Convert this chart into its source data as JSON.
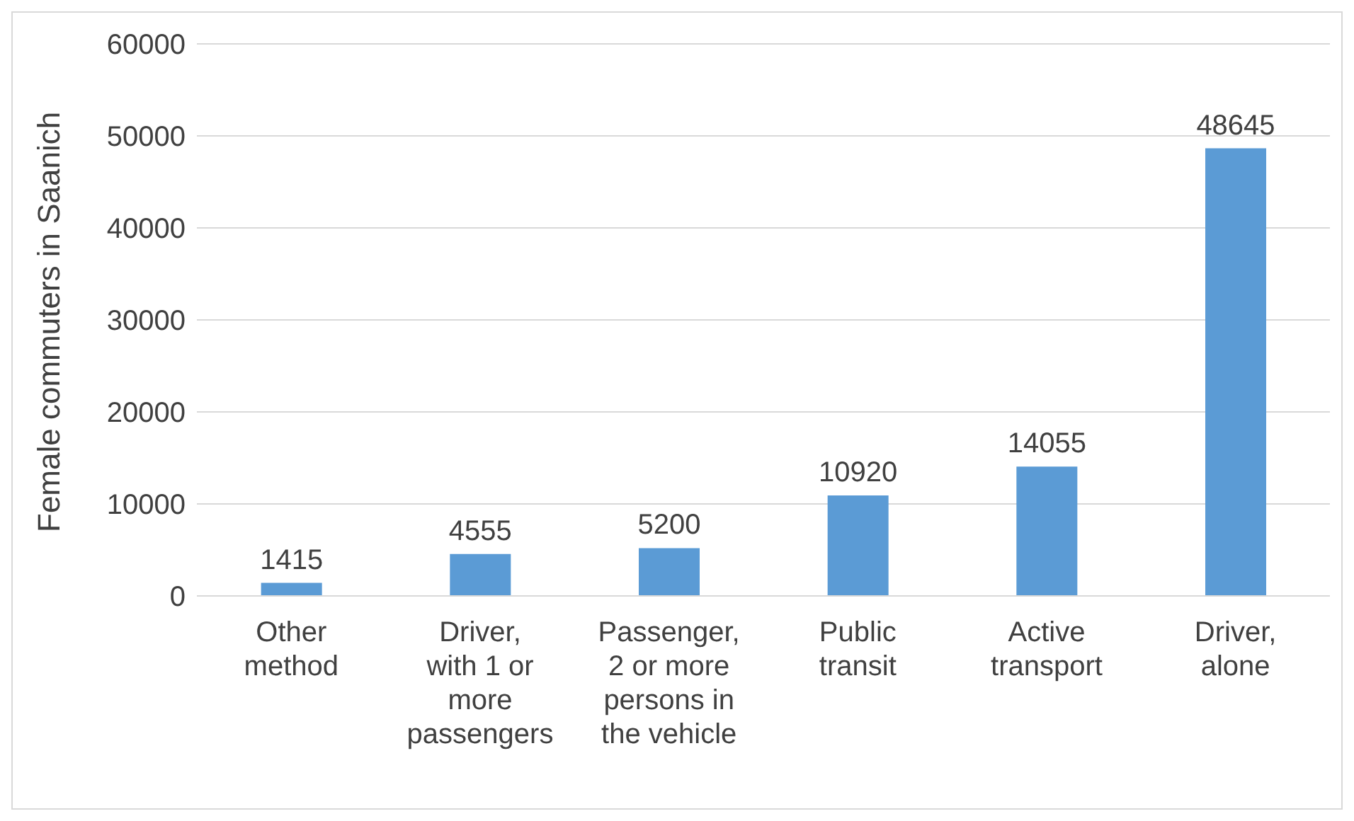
{
  "chart_data": {
    "type": "bar",
    "ylabel": "Female commuters in Saanich",
    "categories": [
      "Other method",
      "Driver, with 1 or more passengers",
      "Passenger, 2 or more persons in the vehicle",
      "Public transit",
      "Active transport",
      "Driver, alone"
    ],
    "values": [
      1415,
      4555,
      5200,
      10920,
      14055,
      48645
    ],
    "color": "#5b9bd5",
    "ylim": [
      0,
      60000
    ],
    "yticks": [
      0,
      10000,
      20000,
      30000,
      40000,
      50000,
      60000
    ],
    "grid": "y",
    "data_labels": true
  }
}
